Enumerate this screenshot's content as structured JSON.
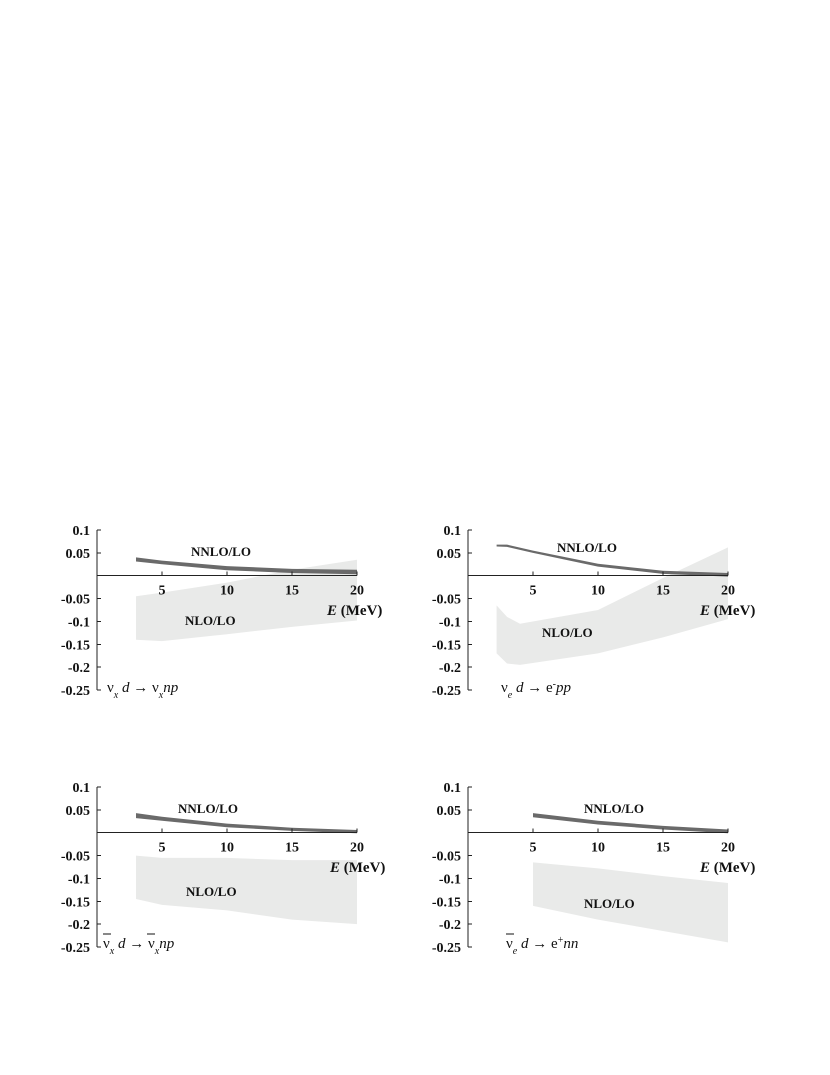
{
  "colors": {
    "nnlo_band": "#6a6a6a",
    "nlo_band": "#e9eae9",
    "axis": "#222222",
    "text": "#111111"
  },
  "chart_data": [
    {
      "type": "area",
      "panel": "top-left",
      "xlabel_var": "E",
      "xlabel_unit": "(MeV)",
      "xticks": [
        "5",
        "10",
        "15",
        "20"
      ],
      "yticks": [
        "0.1",
        "0.05",
        "-0.05",
        "-0.1",
        "-0.15",
        "-0.2",
        "-0.25"
      ],
      "xlim": [
        0,
        20
      ],
      "ylim": [
        -0.25,
        0.1
      ],
      "reaction": "νxd → νxnp",
      "reaction_parts": [
        "ν",
        "x",
        " d ",
        "→",
        " ν",
        "x",
        "np"
      ],
      "series": [
        {
          "name": "NNLO/LO",
          "x": [
            3,
            5,
            10,
            15,
            20
          ],
          "upper": [
            0.04,
            0.033,
            0.021,
            0.015,
            0.013
          ],
          "lower": [
            0.031,
            0.025,
            0.012,
            0.006,
            0.003
          ]
        },
        {
          "name": "NLO/LO",
          "x": [
            3,
            5,
            10,
            15,
            20
          ],
          "upper": [
            -0.045,
            -0.037,
            -0.015,
            0.013,
            0.035
          ],
          "lower": [
            -0.14,
            -0.143,
            -0.128,
            -0.112,
            -0.098
          ]
        }
      ]
    },
    {
      "type": "area",
      "panel": "top-right",
      "xlabel_var": "E",
      "xlabel_unit": "(MeV)",
      "xticks": [
        "5",
        "10",
        "15",
        "20"
      ],
      "yticks": [
        "0.1",
        "0.05",
        "-0.05",
        "-0.1",
        "-0.15",
        "-0.2",
        "-0.25"
      ],
      "xlim": [
        0,
        20
      ],
      "ylim": [
        -0.25,
        0.1
      ],
      "reaction": "νed → e-pp",
      "reaction_parts": [
        "ν",
        "e",
        " d ",
        "→",
        " e",
        "-",
        "pp"
      ],
      "series": [
        {
          "name": "NNLO/LO",
          "x": [
            2.2,
            3,
            5,
            10,
            15,
            20
          ],
          "upper": [
            0.068,
            0.068,
            0.055,
            0.026,
            0.011,
            0.006
          ],
          "lower": [
            0.064,
            0.063,
            0.05,
            0.02,
            0.004,
            -0.002
          ]
        },
        {
          "name": "NLO/LO",
          "x": [
            2.2,
            3,
            4,
            10,
            15,
            20
          ],
          "upper": [
            -0.065,
            -0.09,
            -0.105,
            -0.075,
            -0.005,
            0.062
          ],
          "lower": [
            -0.17,
            -0.192,
            -0.195,
            -0.17,
            -0.135,
            -0.095
          ]
        }
      ]
    },
    {
      "type": "area",
      "panel": "bottom-left",
      "xlabel_var": "E",
      "xlabel_unit": "(MeV)",
      "xticks": [
        "5",
        "10",
        "15",
        "20"
      ],
      "yticks": [
        "0.1",
        "0.05",
        "-0.05",
        "-0.1",
        "-0.15",
        "-0.2",
        "-0.25"
      ],
      "xlim": [
        0,
        20
      ],
      "ylim": [
        -0.25,
        0.1
      ],
      "reaction": "ν̅xd → ν̅xnp",
      "reaction_parts": [
        "ν",
        "x",
        " d ",
        "→",
        " ν",
        "x",
        "np"
      ],
      "reaction_bar": true,
      "series": [
        {
          "name": "NNLO/LO",
          "x": [
            3,
            5,
            10,
            15,
            20
          ],
          "upper": [
            0.043,
            0.035,
            0.02,
            0.011,
            0.006
          ],
          "lower": [
            0.032,
            0.026,
            0.012,
            0.004,
            -0.001
          ]
        },
        {
          "name": "NLO/LO",
          "x": [
            3,
            5,
            10,
            15,
            20
          ],
          "upper": [
            -0.05,
            -0.055,
            -0.055,
            -0.06,
            -0.06
          ],
          "lower": [
            -0.145,
            -0.158,
            -0.17,
            -0.19,
            -0.2
          ]
        }
      ]
    },
    {
      "type": "area",
      "panel": "bottom-right",
      "xlabel_var": "E",
      "xlabel_unit": "(MeV)",
      "xticks": [
        "5",
        "10",
        "15",
        "20"
      ],
      "yticks": [
        "0.1",
        "0.05",
        "-0.05",
        "-0.1",
        "-0.15",
        "-0.2",
        "-0.25"
      ],
      "xlim": [
        0,
        20
      ],
      "ylim": [
        -0.25,
        0.1
      ],
      "reaction": "ν̅ed → e+nn",
      "reaction_parts": [
        "ν",
        "e",
        " d ",
        "→",
        " e",
        "+",
        "nn"
      ],
      "reaction_bar": true,
      "series": [
        {
          "name": "NNLO/LO",
          "x": [
            5,
            10,
            15,
            20
          ],
          "upper": [
            0.043,
            0.026,
            0.015,
            0.007
          ],
          "lower": [
            0.034,
            0.018,
            0.007,
            -0.001
          ]
        },
        {
          "name": "NLO/LO",
          "x": [
            5,
            10,
            15,
            20
          ],
          "upper": [
            -0.065,
            -0.078,
            -0.095,
            -0.11
          ],
          "lower": [
            -0.16,
            -0.19,
            -0.215,
            -0.24
          ]
        }
      ]
    }
  ]
}
